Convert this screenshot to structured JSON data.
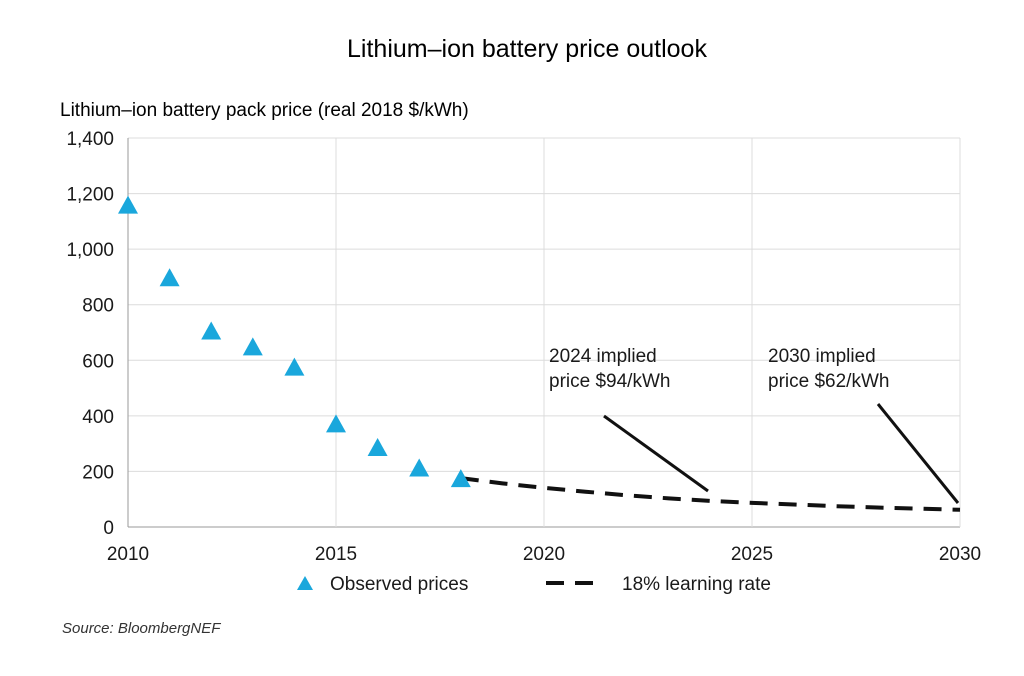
{
  "chart_data": {
    "type": "scatter",
    "title": "Lithium–ion battery price outlook",
    "ylabel": "Lithium–ion battery pack price (real 2018 $/kWh)",
    "xlabel": "",
    "xlim": [
      2010,
      2030
    ],
    "ylim": [
      0,
      1400
    ],
    "x_ticks": [
      "2010",
      "2015",
      "2020",
      "2025",
      "2030"
    ],
    "y_ticks": [
      "0",
      "200",
      "400",
      "600",
      "800",
      "1,000",
      "1,200",
      "1,400"
    ],
    "grid": true,
    "legend_position": "bottom",
    "series": [
      {
        "name": "Observed prices",
        "marker": "triangle",
        "color": "#1aa7dc",
        "x": [
          2010,
          2011,
          2012,
          2013,
          2014,
          2015,
          2016,
          2017,
          2018
        ],
        "y": [
          1160,
          899,
          707,
          650,
          577,
          373,
          288,
          214,
          176
        ]
      },
      {
        "name": "18% learning rate",
        "style": "dashed",
        "color": "#111111",
        "x": [
          2018,
          2019,
          2020,
          2021,
          2022,
          2023,
          2024,
          2025,
          2026,
          2027,
          2028,
          2029,
          2030
        ],
        "y": [
          176,
          157,
          141,
          127,
          114,
          103,
          94,
          87,
          81,
          75,
          70,
          66,
          62
        ]
      }
    ],
    "annotations": [
      {
        "lines": [
          "2024 implied",
          "price $94/kWh"
        ],
        "x": 2024,
        "y": 94
      },
      {
        "lines": [
          "2030 implied",
          "price $62/kWh"
        ],
        "x": 2030,
        "y": 62
      }
    ],
    "source": "Source: BloombergNEF"
  }
}
